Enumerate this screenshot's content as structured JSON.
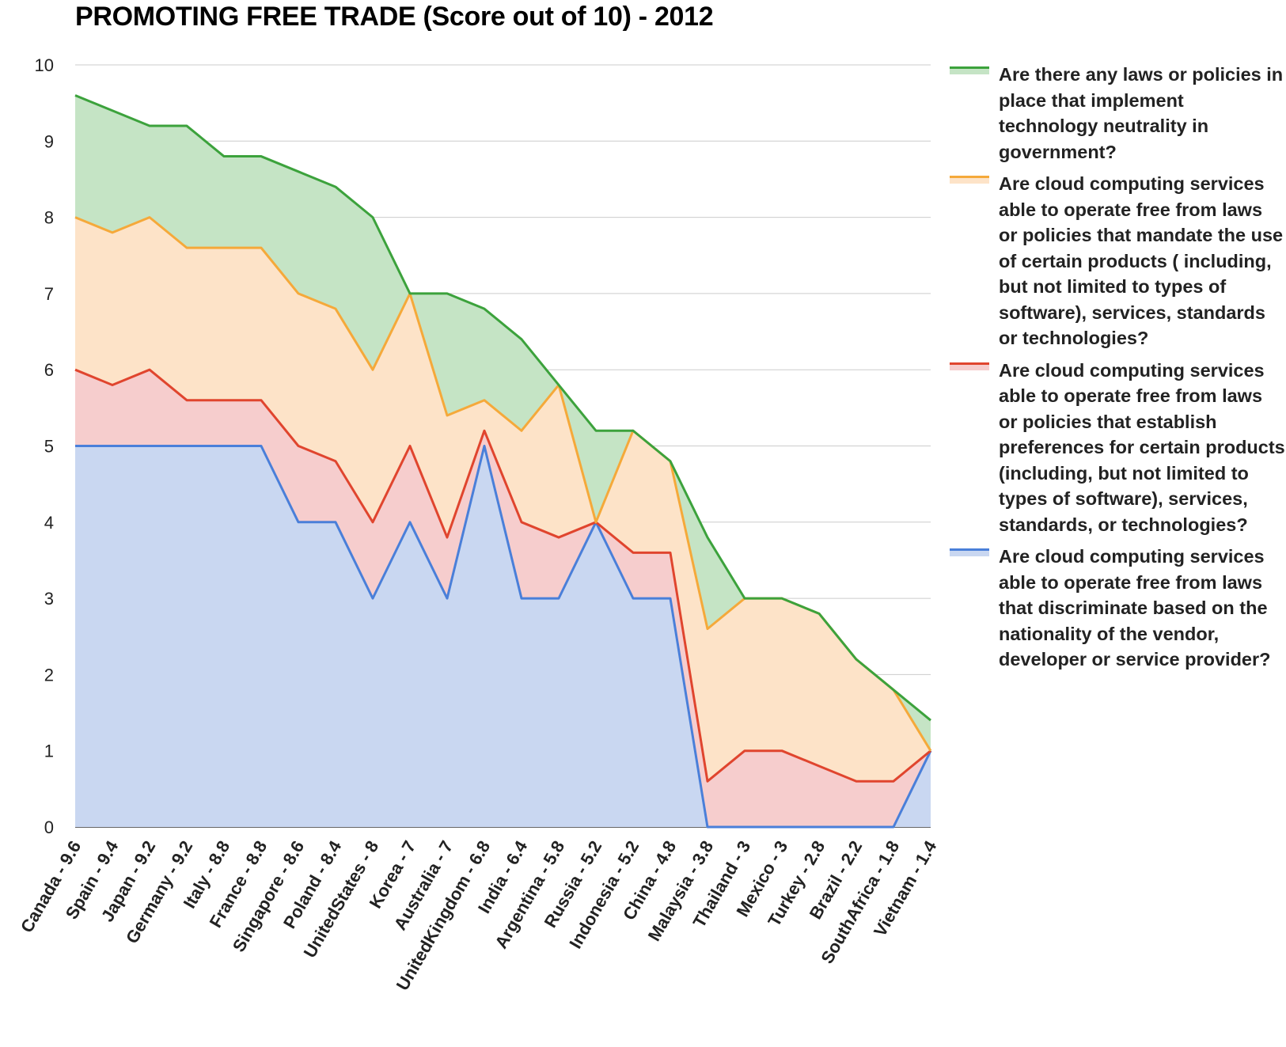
{
  "chart_data": {
    "type": "area",
    "stacked": false,
    "title": "PROMOTING FREE TRADE (Score out of 10) - 2012",
    "ylim": [
      0,
      10
    ],
    "yticks": [
      "0",
      "1",
      "2",
      "3",
      "4",
      "5",
      "6",
      "7",
      "8",
      "9",
      "10"
    ],
    "grid": true,
    "legend_position": "right",
    "categories": [
      "Canada - 9.6",
      "Spain - 9.4",
      "Japan - 9.2",
      "Germany - 9.2",
      "Italy - 8.8",
      "France - 8.8",
      "Singapore - 8.6",
      "Poland - 8.4",
      "UnitedStates - 8",
      "Korea - 7",
      "Australia - 7",
      "UnitedKingdom - 6.8",
      "India - 6.4",
      "Argentina - 5.8",
      "Russia - 5.2",
      "Indonesia - 5.2",
      "China - 4.8",
      "Malaysia - 3.8",
      "Thailand - 3",
      "Mexico - 3",
      "Turkey - 2.8",
      "Brazil - 2.2",
      "SouthAfrica - 1.8",
      "Vietnam - 1.4"
    ],
    "series": [
      {
        "name": "Are there any laws or policies in place that implement technology neutrality in government?",
        "color": "#3ca23c",
        "fill": "#c5e4c5",
        "values": [
          9.6,
          9.4,
          9.2,
          9.2,
          8.8,
          8.8,
          8.6,
          8.4,
          8,
          7,
          7,
          6.8,
          6.4,
          5.8,
          5.2,
          5.2,
          4.8,
          3.8,
          3,
          3,
          2.8,
          2.2,
          1.8,
          1.4
        ]
      },
      {
        "name": "Are cloud computing services able to operate free from laws or policies that mandate the use of certain products ( including, but not limited to types of software), services, standards or technologies?",
        "color": "#f5a93a",
        "fill": "#fde3c8",
        "values": [
          8,
          7.8,
          8,
          7.6,
          7.6,
          7.6,
          7,
          6.8,
          6,
          7,
          5.4,
          5.6,
          5.2,
          5.8,
          4,
          5.2,
          4.8,
          2.6,
          3,
          3,
          2.8,
          2.2,
          1.8,
          1
        ]
      },
      {
        "name": "Are cloud computing services able to operate free from laws or policies that establish preferences for certain products (including, but not limited to types of software), services, standards, or technologies?",
        "color": "#e0452e",
        "fill": "#f6cdcd",
        "values": [
          6,
          5.8,
          6,
          5.6,
          5.6,
          5.6,
          5,
          4.8,
          4,
          5,
          3.8,
          5.2,
          4,
          3.8,
          4,
          3.6,
          3.6,
          0.6,
          1,
          1,
          0.8,
          0.6,
          0.6,
          1
        ]
      },
      {
        "name": "Are cloud computing services able to operate free from laws that discriminate based on the nationality of the vendor, developer or service provider?",
        "color": "#4a7fd9",
        "fill": "#c9d7f1",
        "values": [
          5,
          5,
          5,
          5,
          5,
          5,
          4,
          4,
          3,
          4,
          3,
          5,
          3,
          3,
          4,
          3,
          3,
          0,
          0,
          0,
          0,
          0,
          0,
          1
        ]
      }
    ]
  }
}
